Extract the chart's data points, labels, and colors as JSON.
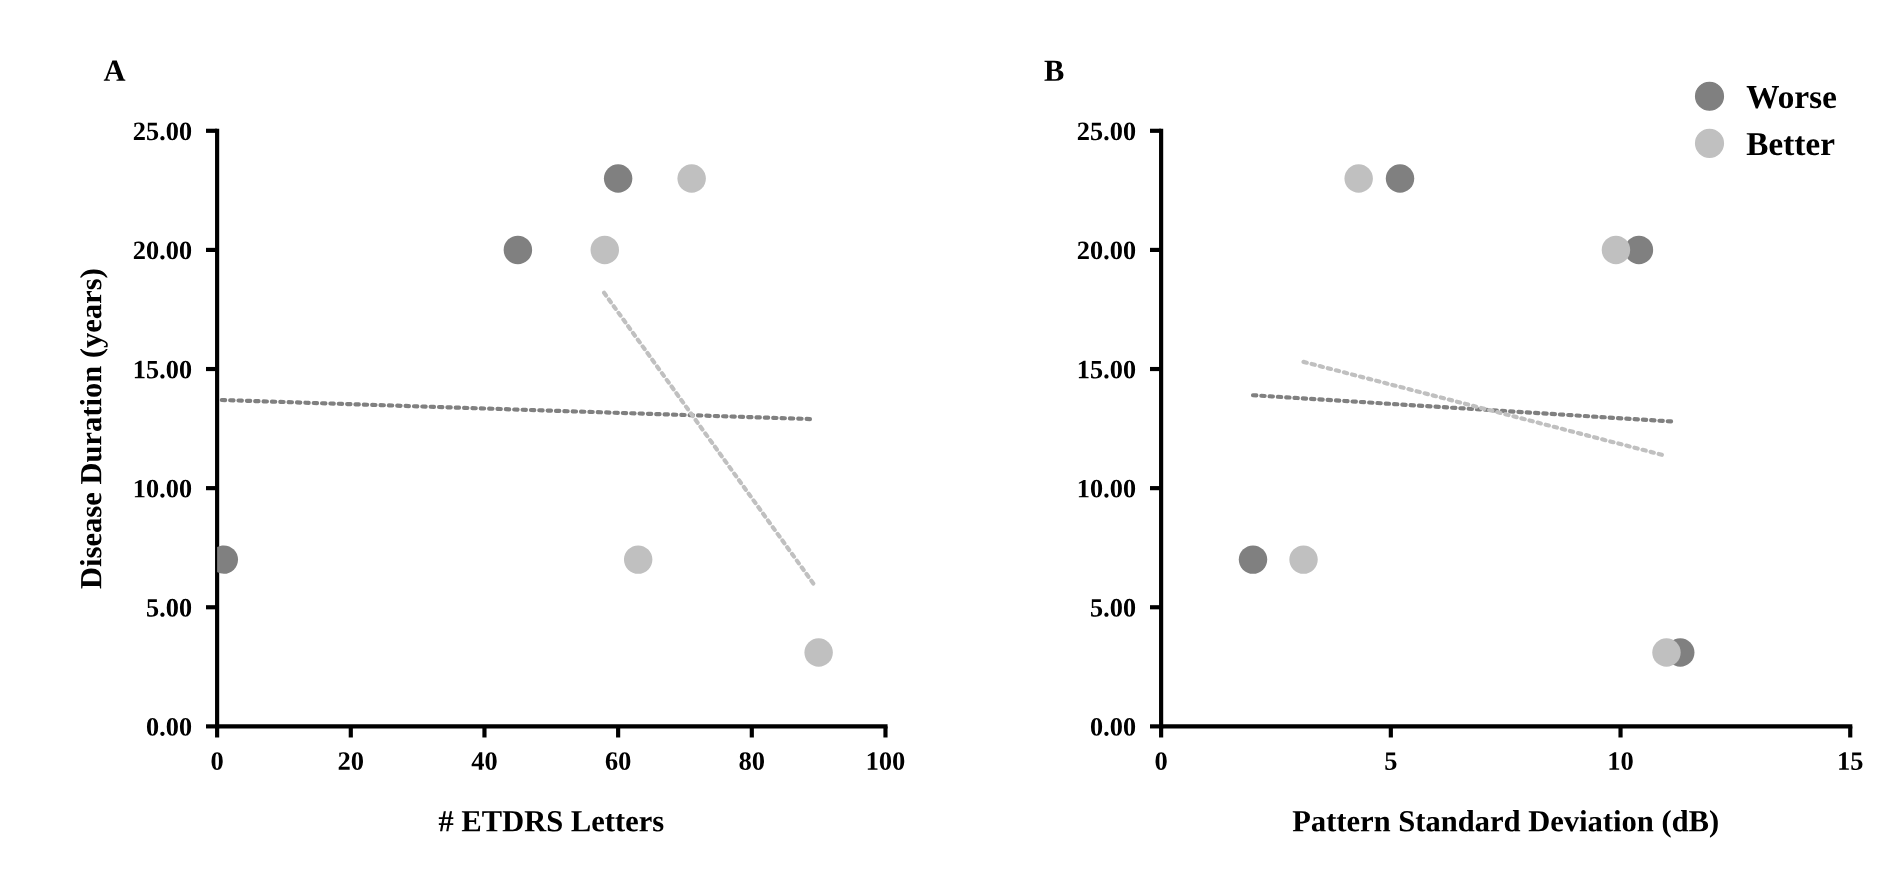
{
  "chart_data": [
    {
      "type": "scatter",
      "title": "A",
      "xlabel": "# ETDRS Letters",
      "ylabel": "Disease Duration (years)",
      "xlim": [
        0,
        100
      ],
      "xticks": [
        0,
        20,
        40,
        60,
        80,
        100
      ],
      "ylim": [
        0,
        25
      ],
      "yticks": [
        {
          "value": 0,
          "label": "0.00"
        },
        {
          "value": 5,
          "label": "5.00"
        },
        {
          "value": 10,
          "label": "10.00"
        },
        {
          "value": 15,
          "label": "15.00"
        },
        {
          "value": 20,
          "label": "20.00"
        },
        {
          "value": 25,
          "label": "25.00"
        }
      ],
      "grid": false,
      "legend": false,
      "series": [
        {
          "color": "#808080",
          "marker": "circle",
          "x": [
            1,
            45,
            60
          ],
          "values": [
            7,
            20,
            23
          ]
        },
        {
          "color": "#c0c0c0",
          "marker": "circle",
          "x": [
            58,
            71,
            63,
            90
          ],
          "values": [
            20,
            23,
            7,
            3.1
          ]
        },
        {
          "type": "line",
          "line_style": "dotted",
          "color": "#808080",
          "x": [
            0.7,
            88.7
          ],
          "values": [
            13.7,
            12.9
          ]
        },
        {
          "type": "line",
          "line_style": "dotted",
          "color": "#c0c0c0",
          "x": [
            57.9,
            89.2
          ],
          "values": [
            18.2,
            6.0
          ]
        }
      ]
    },
    {
      "type": "scatter",
      "title": "B",
      "xlabel": "Pattern Standard Deviation (dB)",
      "xlim": [
        0,
        15
      ],
      "xticks": [
        0,
        5,
        10,
        15
      ],
      "ylim": [
        0,
        25
      ],
      "yticks": [
        {
          "value": 0,
          "label": "0.00"
        },
        {
          "value": 5,
          "label": "5.00"
        },
        {
          "value": 10,
          "label": "10.00"
        },
        {
          "value": 15,
          "label": "15.00"
        },
        {
          "value": 20,
          "label": "20.00"
        },
        {
          "value": 25,
          "label": "25.00"
        }
      ],
      "grid": false,
      "legend": "top right",
      "series": [
        {
          "name": "Worse",
          "color": "#808080",
          "marker": "circle",
          "x": [
            2.0,
            5.2,
            10.4,
            11.3
          ],
          "values": [
            7,
            23,
            20,
            3.1
          ]
        },
        {
          "name": "Better",
          "color": "#c0c0c0",
          "marker": "circle",
          "x": [
            3.1,
            4.3,
            9.9,
            11.0
          ],
          "values": [
            7,
            23,
            20,
            3.1
          ]
        },
        {
          "type": "line",
          "line_style": "dotted",
          "color": "#808080",
          "x": [
            2.0,
            11.1
          ],
          "values": [
            13.9,
            12.8
          ]
        },
        {
          "type": "line",
          "line_style": "dotted",
          "color": "#c0c0c0",
          "x": [
            3.1,
            10.9
          ],
          "values": [
            15.3,
            11.4
          ]
        }
      ]
    }
  ]
}
